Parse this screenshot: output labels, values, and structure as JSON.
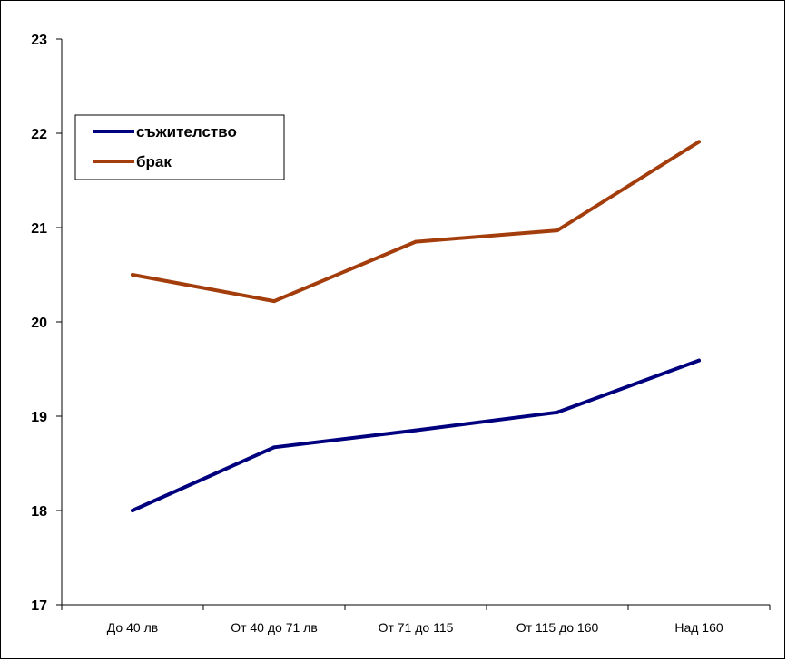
{
  "chart_data": {
    "type": "line",
    "categories": [
      "До 40 лв",
      "От 40 до 71 лв",
      "От 71 до 115",
      "От 115 до 160",
      "Над 160"
    ],
    "series": [
      {
        "name": "съжителство",
        "color": "#00007f",
        "values": [
          18.0,
          18.67,
          18.85,
          19.04,
          19.59
        ]
      },
      {
        "name": "брак",
        "color": "#a33d0b",
        "values": [
          20.5,
          20.22,
          20.85,
          20.97,
          21.91
        ]
      }
    ],
    "ylim": [
      17,
      23
    ],
    "yticks": [
      "17",
      "18",
      "19",
      "20",
      "21",
      "22",
      "23"
    ],
    "grid": false,
    "legend_position": "top-left",
    "title": "",
    "xlabel": "",
    "ylabel": ""
  }
}
